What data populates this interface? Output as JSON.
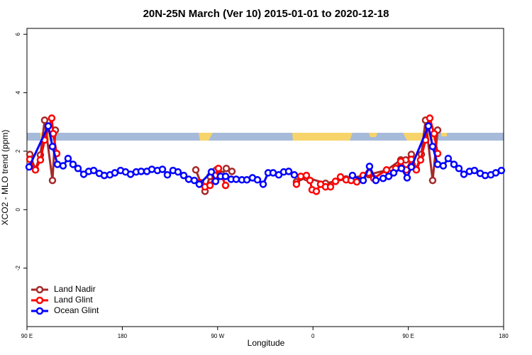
{
  "chart_data": {
    "type": "line",
    "title": "20N-25N March (Ver 10)   2015-01-01 to 2020-12-18",
    "x_label": "Longitude",
    "y_label": "XCO2 - MLO trend (ppm)",
    "xlim": [
      90,
      540
    ],
    "ylim": [
      -4,
      6.2
    ],
    "xticks": [
      {
        "value": 90,
        "label": "90 E"
      },
      180,
      {
        "value": 270,
        "label": "90 W"
      },
      {
        "value": 360,
        "label": "0"
      },
      {
        "value": 450,
        "label": "90 E"
      },
      {
        "value": 540,
        "label": "180"
      }
    ],
    "yticks": [
      -2,
      0,
      2,
      4,
      6
    ],
    "legend": "bottom-left",
    "series": [
      {
        "name": "Land Nadir",
        "color": "#a52a2a",
        "x": [
          92.7,
          98.0,
          102.7,
          106.7,
          114.1,
          116.8,
          180,
          249.4,
          254.1,
          258.1,
          262.8,
          268.8,
          273.5,
          278.2,
          283.5,
          310,
          344.4,
          353.8,
          371.9,
          391.3,
          412.7,
          429.5,
          442.9,
          447.6,
          452.9,
          457.6,
          462.3,
          466.3,
          473.0,
          477.7
        ],
        "values": [
          1.89,
          1.38,
          1.87,
          3.06,
          1.0,
          2.72,
          null,
          1.36,
          0.92,
          0.63,
          1.14,
          1.36,
          1.21,
          1.41,
          1.31,
          null,
          0.95,
          1.1,
          0.9,
          1.05,
          1.2,
          1.35,
          1.7,
          1.7,
          1.89,
          1.38,
          1.89,
          3.06,
          1.0,
          2.72
        ]
      },
      {
        "name": "Land Glint",
        "color": "#ff0000",
        "x": [
          92.7,
          98.0,
          102.7,
          106.7,
          113.4,
          114.8,
          118.1,
          180,
          252.7,
          258.1,
          262.8,
          267.5,
          270.8,
          277.5,
          310,
          344.4,
          348.5,
          353.8,
          357.2,
          359.2,
          363.2,
          367.2,
          371.9,
          376.6,
          381.3,
          386.0,
          391.3,
          396.0,
          401.4,
          407.4,
          412.7,
          417.4,
          429.5,
          433.5,
          438.2,
          442.9,
          448.2,
          452.9,
          457.6,
          461.6,
          466.3,
          470.3,
          474.4,
          477.7
        ],
        "values": [
          1.72,
          1.36,
          1.7,
          2.38,
          3.13,
          2.6,
          1.92,
          null,
          0.92,
          0.78,
          0.83,
          1.17,
          1.41,
          0.83,
          null,
          0.87,
          1.14,
          1.17,
          1.0,
          0.68,
          0.63,
          0.87,
          0.78,
          0.78,
          0.97,
          1.12,
          1.02,
          1.0,
          0.95,
          1.17,
          1.26,
          1.07,
          1.36,
          1.24,
          1.41,
          1.65,
          1.36,
          1.72,
          1.36,
          1.7,
          2.38,
          3.13,
          2.6,
          1.92
        ]
      },
      {
        "name": "Ocean Glint",
        "color": "#0000ff",
        "x": [
          92.0,
          110.1,
          114.1,
          118.8,
          124.1,
          128.8,
          133.5,
          138.2,
          143.6,
          148.3,
          153.0,
          158.3,
          163.0,
          168.3,
          173.0,
          178.4,
          183.1,
          187.8,
          193.1,
          197.8,
          203.2,
          207.9,
          213.2,
          217.9,
          222.6,
          227.9,
          232.6,
          238.0,
          242.7,
          248.0,
          252.7,
          264.1,
          268.1,
          272.8,
          277.5,
          282.8,
          287.5,
          292.9,
          297.6,
          302.9,
          307.6,
          313.0,
          317.7,
          322.4,
          327.7,
          332.4,
          337.1,
          342.4,
          370,
          397.3,
          407.4,
          413.4,
          419.4,
          426.2,
          431.5,
          436.2,
          443.5,
          448.9,
          452.9,
          469.0,
          473.0,
          477.7,
          483.0,
          487.7,
          493.1,
          497.8,
          502.5,
          507.8,
          512.5,
          517.9,
          522.6,
          527.9,
          532.6,
          537.9
        ],
        "values": [
          1.46,
          2.86,
          2.16,
          1.55,
          1.5,
          1.75,
          1.55,
          1.41,
          1.21,
          1.31,
          1.34,
          1.24,
          1.17,
          1.19,
          1.26,
          1.34,
          1.29,
          1.21,
          1.29,
          1.31,
          1.31,
          1.38,
          1.34,
          1.38,
          1.19,
          1.34,
          1.29,
          1.17,
          1.04,
          1.0,
          0.87,
          1.29,
          0.97,
          1.14,
          1.14,
          1.04,
          1.04,
          1.02,
          1.02,
          1.09,
          1.02,
          0.87,
          1.26,
          1.26,
          1.19,
          1.29,
          1.31,
          1.19,
          null,
          1.17,
          1.0,
          1.48,
          1.0,
          1.07,
          1.14,
          1.26,
          1.41,
          1.09,
          1.46,
          2.86,
          2.16,
          1.55,
          1.5,
          1.75,
          1.55,
          1.41,
          1.21,
          1.31,
          1.34,
          1.24,
          1.17,
          1.19,
          1.26,
          1.34
        ]
      }
    ]
  }
}
